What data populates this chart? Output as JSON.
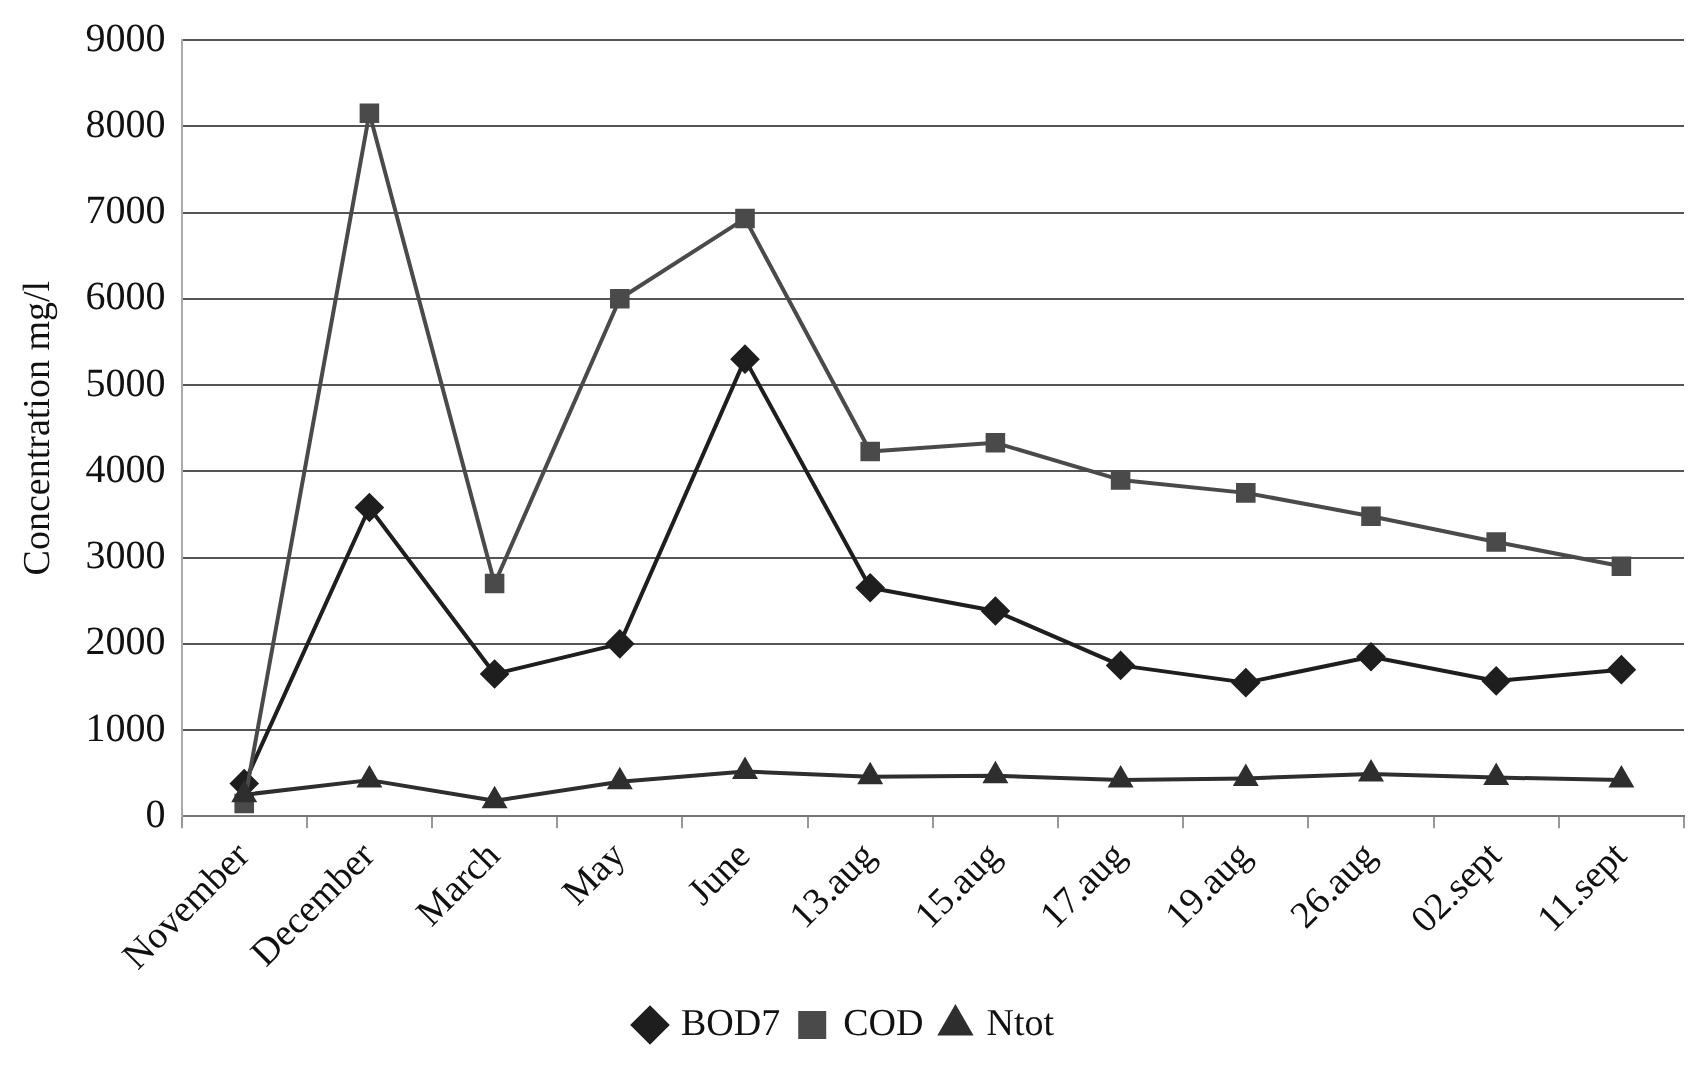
{
  "chart_data": {
    "type": "line",
    "ylabel": "Concentration mg/l",
    "categories": [
      "November",
      "December",
      "March",
      "May",
      "June",
      "13.aug",
      "15.aug",
      "17.aug",
      "19.aug",
      "26.aug",
      "02.sept",
      "11.sept"
    ],
    "series": [
      {
        "name": "BOD7",
        "color": "#1e1e1e",
        "marker": "diamond",
        "values": [
          380,
          3580,
          1650,
          2000,
          5300,
          2650,
          2380,
          1750,
          1550,
          1850,
          1570,
          1700
        ]
      },
      {
        "name": "COD",
        "color": "#4a4a4a",
        "marker": "square",
        "values": [
          150,
          8150,
          2700,
          6000,
          6930,
          4230,
          4330,
          3900,
          3750,
          3480,
          3180,
          2900
        ]
      },
      {
        "name": "Ntot",
        "color": "#2e2e2e",
        "marker": "triangle",
        "values": [
          250,
          420,
          180,
          400,
          520,
          460,
          470,
          420,
          440,
          490,
          450,
          420
        ]
      }
    ],
    "ylim": [
      0,
      9000
    ],
    "yticks": [
      0,
      1000,
      2000,
      3000,
      4000,
      5000,
      6000,
      7000,
      8000,
      9000
    ],
    "grid": "y",
    "legend": "bottom",
    "line_style": "solid"
  }
}
